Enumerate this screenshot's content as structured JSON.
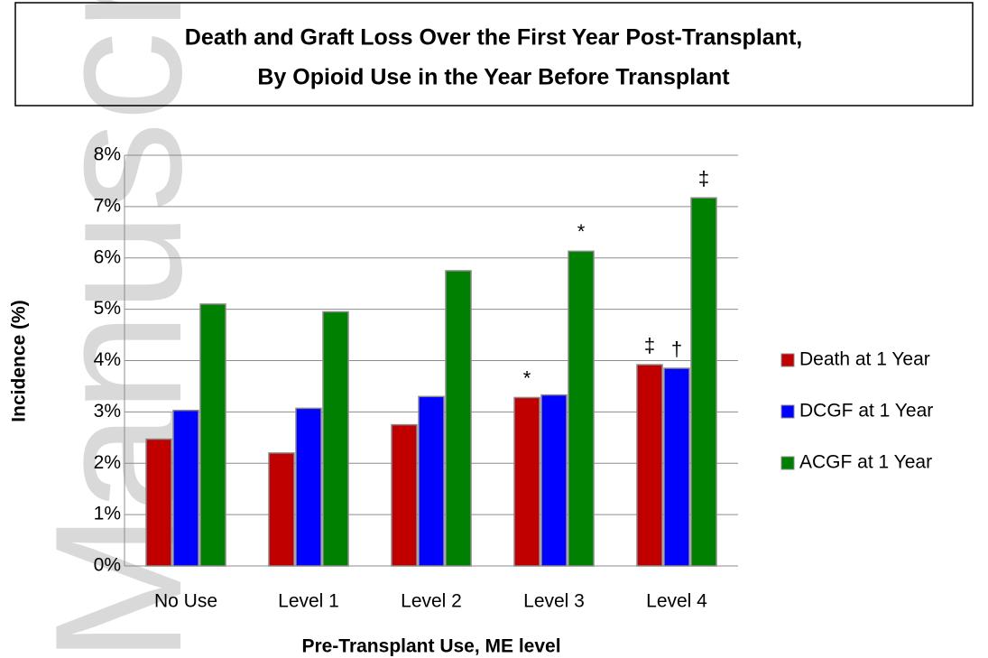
{
  "watermark": "Manuscript",
  "chart_data": {
    "type": "bar",
    "title": [
      "Death and Graft Loss Over the First Year Post-Transplant,",
      "By Opioid Use in the Year Before Transplant"
    ],
    "x_label": "Pre-Transplant Use, ME level",
    "y_label": "Incidence (%)",
    "categories": [
      "No Use",
      "Level 1",
      "Level 2",
      "Level 3",
      "Level 4"
    ],
    "series": [
      {
        "name": "Death at 1 Year",
        "color": "#c00000",
        "values": [
          2.47,
          2.2,
          2.75,
          3.28,
          3.92
        ],
        "annotations": [
          null,
          null,
          null,
          "*",
          "‡"
        ]
      },
      {
        "name": "DCGF at 1 Year",
        "color": "#0000ff",
        "values": [
          3.03,
          3.07,
          3.3,
          3.33,
          3.85
        ],
        "annotations": [
          null,
          null,
          null,
          null,
          "†"
        ]
      },
      {
        "name": "ACGF at 1 Year",
        "color": "#008000",
        "values": [
          5.1,
          4.95,
          5.75,
          6.13,
          7.17
        ],
        "annotations": [
          null,
          null,
          null,
          "*",
          "‡"
        ]
      }
    ],
    "ylim": [
      0,
      8
    ],
    "yticks": [
      {
        "value": 0,
        "label": "0%"
      },
      {
        "value": 1,
        "label": "1%"
      },
      {
        "value": 2,
        "label": "2%"
      },
      {
        "value": 3,
        "label": "3%"
      },
      {
        "value": 4,
        "label": "4%"
      },
      {
        "value": 5,
        "label": "5%"
      },
      {
        "value": 6,
        "label": "6%"
      },
      {
        "value": 7,
        "label": "7%"
      },
      {
        "value": 8,
        "label": "8%"
      }
    ],
    "grid": true,
    "legend": "right"
  }
}
